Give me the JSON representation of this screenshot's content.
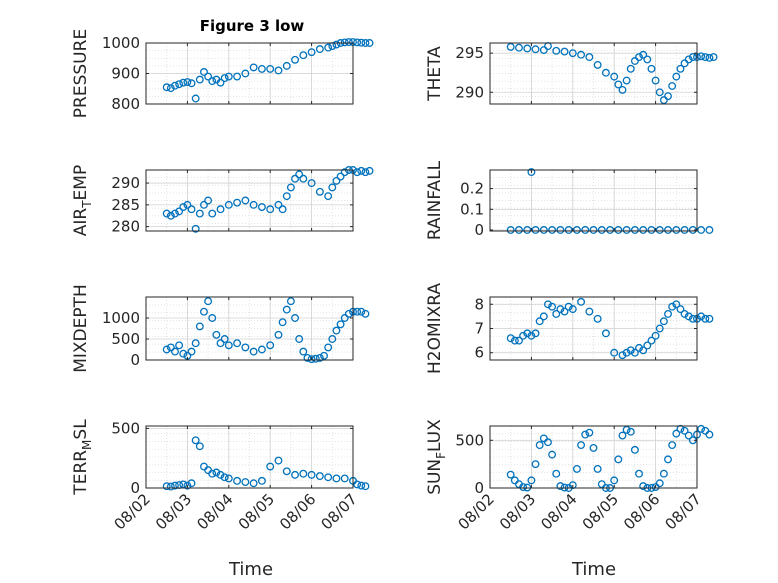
{
  "figure": {
    "title": "Figure 3 low",
    "xlabel": "Time",
    "xticks": [
      "08/02",
      "08/03",
      "08/04",
      "08/05",
      "08/06",
      "08/07"
    ],
    "marker_color": "#0072BD"
  },
  "chart_data": [
    {
      "type": "scatter",
      "name": "pressure",
      "ylabel": "PRESSURE",
      "yticks": [
        800,
        900,
        1000
      ],
      "ylim": [
        800,
        1000
      ],
      "x": [
        0.5,
        0.6,
        0.7,
        0.8,
        0.9,
        1.0,
        1.1,
        1.2,
        1.3,
        1.4,
        1.5,
        1.6,
        1.7,
        1.8,
        1.9,
        2.0,
        2.2,
        2.4,
        2.6,
        2.8,
        3.0,
        3.2,
        3.4,
        3.6,
        3.8,
        4.0,
        4.2,
        4.4,
        4.5,
        4.6,
        4.7,
        4.8,
        4.9,
        5.0,
        5.1,
        5.2,
        5.3,
        5.4
      ],
      "y": [
        855,
        852,
        860,
        865,
        870,
        872,
        868,
        818,
        880,
        905,
        890,
        875,
        880,
        870,
        885,
        890,
        890,
        900,
        920,
        915,
        915,
        910,
        925,
        945,
        960,
        970,
        980,
        985,
        990,
        995,
        1000,
        1002,
        1003,
        1003,
        1002,
        1001,
        1000,
        1000
      ]
    },
    {
      "type": "scatter",
      "name": "theta",
      "ylabel": "THETA",
      "yticks": [
        290,
        295
      ],
      "ylim": [
        288.5,
        296.3
      ],
      "x": [
        0.5,
        0.7,
        0.9,
        1.1,
        1.3,
        1.4,
        1.6,
        1.8,
        2.0,
        2.2,
        2.4,
        2.6,
        2.8,
        3.0,
        3.1,
        3.2,
        3.3,
        3.4,
        3.5,
        3.6,
        3.7,
        3.8,
        3.9,
        4.0,
        4.1,
        4.2,
        4.3,
        4.4,
        4.5,
        4.6,
        4.7,
        4.8,
        4.9,
        5.0,
        5.1,
        5.2,
        5.3,
        5.4
      ],
      "y": [
        295.8,
        295.7,
        295.6,
        295.5,
        295.4,
        295.9,
        295.3,
        295.2,
        295.0,
        294.8,
        294.5,
        293.5,
        292.5,
        292.0,
        291.0,
        290.3,
        291.5,
        293.0,
        294.0,
        294.5,
        294.8,
        294.2,
        293.0,
        291.5,
        290.0,
        289.0,
        289.5,
        290.8,
        292.0,
        293.0,
        293.7,
        294.2,
        294.5,
        294.5,
        294.6,
        294.5,
        294.4,
        294.5
      ]
    },
    {
      "type": "scatter",
      "name": "air_temp",
      "ylabel": "AIR_TEMP",
      "yticks": [
        280,
        285,
        290
      ],
      "ylim": [
        279,
        293
      ],
      "x": [
        0.5,
        0.6,
        0.7,
        0.8,
        0.9,
        1.0,
        1.1,
        1.2,
        1.3,
        1.4,
        1.5,
        1.6,
        1.8,
        2.0,
        2.2,
        2.4,
        2.6,
        2.8,
        3.0,
        3.2,
        3.3,
        3.4,
        3.5,
        3.6,
        3.7,
        3.8,
        4.0,
        4.2,
        4.4,
        4.5,
        4.6,
        4.7,
        4.8,
        4.9,
        5.0,
        5.1,
        5.2,
        5.3,
        5.4
      ],
      "y": [
        283,
        282.5,
        283,
        283.5,
        284.5,
        285,
        284,
        279.5,
        283,
        285,
        286,
        283,
        284,
        285,
        285.5,
        286,
        285,
        284.5,
        284,
        285,
        284,
        287,
        289,
        291,
        292,
        291,
        290,
        288,
        287,
        289,
        290.5,
        291.5,
        292.5,
        293,
        293,
        292.5,
        292.8,
        292.5,
        292.8
      ]
    },
    {
      "type": "scatter",
      "name": "rainfall",
      "ylabel": "RAINFALL",
      "yticks": [
        0,
        0.1,
        0.2
      ],
      "ylim": [
        -0.005,
        0.29
      ],
      "x": [
        0.5,
        0.7,
        0.9,
        1.0,
        1.1,
        1.3,
        1.5,
        1.7,
        1.9,
        2.1,
        2.3,
        2.5,
        2.7,
        2.9,
        3.1,
        3.3,
        3.5,
        3.7,
        3.9,
        4.1,
        4.3,
        4.5,
        4.7,
        4.9,
        5.1,
        5.3
      ],
      "y": [
        0,
        0,
        0,
        0.28,
        0,
        0,
        0,
        0,
        0,
        0,
        0,
        0,
        0,
        0,
        0,
        0,
        0,
        0,
        0,
        0,
        0,
        0,
        0,
        0,
        0,
        0
      ]
    },
    {
      "type": "scatter",
      "name": "mixdepth",
      "ylabel": "MIXDEPTH",
      "yticks": [
        0,
        500,
        1000
      ],
      "ylim": [
        0,
        1500
      ],
      "x": [
        0.5,
        0.6,
        0.7,
        0.8,
        0.9,
        1.0,
        1.1,
        1.2,
        1.3,
        1.4,
        1.5,
        1.6,
        1.7,
        1.8,
        1.9,
        2.0,
        2.2,
        2.4,
        2.6,
        2.8,
        3.0,
        3.2,
        3.3,
        3.4,
        3.5,
        3.6,
        3.7,
        3.8,
        3.9,
        4.0,
        4.1,
        4.2,
        4.3,
        4.4,
        4.5,
        4.6,
        4.7,
        4.8,
        4.9,
        5.0,
        5.1,
        5.2,
        5.3
      ],
      "y": [
        250,
        300,
        200,
        350,
        150,
        100,
        200,
        400,
        800,
        1150,
        1400,
        1000,
        600,
        400,
        500,
        350,
        400,
        300,
        200,
        250,
        350,
        600,
        900,
        1200,
        1400,
        1000,
        500,
        200,
        50,
        20,
        30,
        50,
        100,
        300,
        500,
        700,
        850,
        1000,
        1100,
        1150,
        1150,
        1150,
        1100
      ]
    },
    {
      "type": "scatter",
      "name": "h2omixra",
      "ylabel": "H2OMIXRA",
      "yticks": [
        6,
        7,
        8
      ],
      "ylim": [
        5.7,
        8.3
      ],
      "x": [
        0.5,
        0.6,
        0.7,
        0.8,
        0.9,
        1.0,
        1.1,
        1.2,
        1.3,
        1.4,
        1.5,
        1.6,
        1.7,
        1.8,
        1.9,
        2.0,
        2.2,
        2.4,
        2.6,
        2.8,
        3.0,
        3.2,
        3.3,
        3.4,
        3.5,
        3.6,
        3.7,
        3.8,
        3.9,
        4.0,
        4.1,
        4.2,
        4.3,
        4.4,
        4.5,
        4.6,
        4.7,
        4.8,
        4.9,
        5.0,
        5.1,
        5.2,
        5.3
      ],
      "y": [
        6.6,
        6.5,
        6.5,
        6.7,
        6.8,
        6.7,
        6.8,
        7.3,
        7.5,
        8.0,
        7.9,
        7.6,
        7.8,
        7.7,
        7.9,
        7.8,
        8.1,
        7.7,
        7.4,
        6.8,
        6.0,
        5.9,
        6.0,
        6.1,
        6.0,
        6.2,
        6.1,
        6.3,
        6.5,
        6.7,
        7.0,
        7.3,
        7.6,
        7.9,
        8.0,
        7.8,
        7.6,
        7.5,
        7.4,
        7.4,
        7.5,
        7.4,
        7.4
      ]
    },
    {
      "type": "scatter",
      "name": "terr_msl",
      "ylabel": "TERR_MSL",
      "yticks": [
        0,
        500
      ],
      "ylim": [
        0,
        520
      ],
      "x": [
        0.5,
        0.6,
        0.7,
        0.8,
        0.9,
        1.0,
        1.1,
        1.2,
        1.3,
        1.4,
        1.5,
        1.6,
        1.7,
        1.8,
        1.9,
        2.0,
        2.2,
        2.4,
        2.6,
        2.8,
        3.0,
        3.2,
        3.4,
        3.6,
        3.8,
        4.0,
        4.2,
        4.4,
        4.6,
        4.8,
        5.0,
        5.1,
        5.2,
        5.3
      ],
      "y": [
        15,
        12,
        20,
        25,
        30,
        20,
        40,
        400,
        350,
        180,
        150,
        120,
        130,
        110,
        90,
        80,
        60,
        50,
        40,
        60,
        180,
        230,
        140,
        110,
        120,
        110,
        100,
        90,
        80,
        80,
        60,
        30,
        20,
        15
      ]
    },
    {
      "type": "scatter",
      "name": "sun_flux",
      "ylabel": "SUN_FLUX",
      "yticks": [
        0,
        500
      ],
      "ylim": [
        0,
        650
      ],
      "x": [
        0.5,
        0.6,
        0.7,
        0.8,
        0.9,
        1.0,
        1.1,
        1.2,
        1.3,
        1.4,
        1.5,
        1.6,
        1.7,
        1.8,
        1.9,
        2.0,
        2.1,
        2.2,
        2.3,
        2.4,
        2.5,
        2.6,
        2.7,
        2.8,
        2.9,
        3.0,
        3.1,
        3.2,
        3.3,
        3.4,
        3.5,
        3.6,
        3.7,
        3.8,
        3.9,
        4.0,
        4.1,
        4.2,
        4.3,
        4.4,
        4.5,
        4.6,
        4.7,
        4.8,
        4.9,
        5.0,
        5.1,
        5.2,
        5.3
      ],
      "y": [
        140,
        80,
        40,
        10,
        5,
        80,
        250,
        450,
        520,
        480,
        350,
        150,
        20,
        5,
        0,
        30,
        200,
        450,
        560,
        580,
        420,
        200,
        40,
        0,
        0,
        80,
        300,
        550,
        610,
        590,
        400,
        150,
        20,
        0,
        0,
        10,
        50,
        150,
        300,
        450,
        570,
        620,
        600,
        550,
        500,
        560,
        620,
        600,
        560
      ]
    }
  ]
}
